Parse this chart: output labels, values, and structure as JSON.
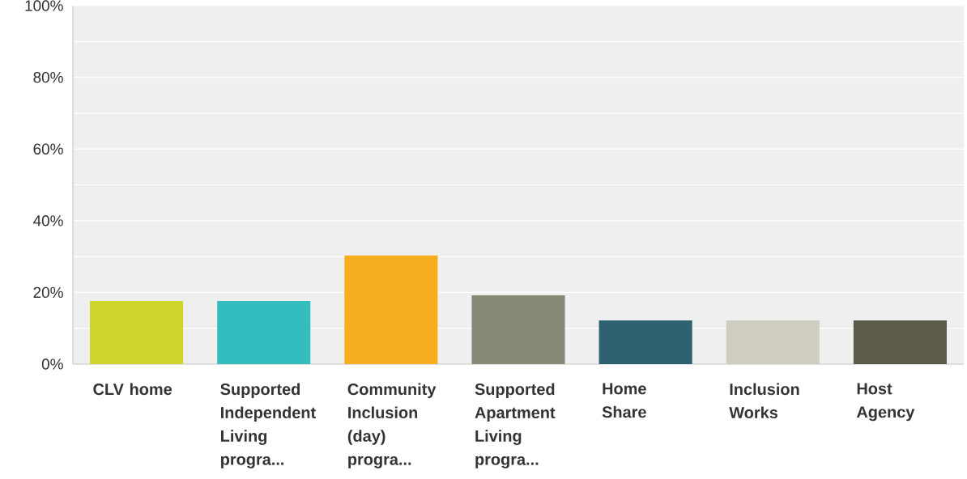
{
  "chart_data": {
    "type": "bar",
    "categories": [
      "CLV home",
      "Supported Independent Living progra...",
      "Community Inclusion (day) progra...",
      "Supported Apartment Living progra...",
      "Home Share",
      "Inclusion Works",
      "Host Agency"
    ],
    "values": [
      17.6,
      17.6,
      30.3,
      19.2,
      12.2,
      12.2,
      12.2
    ],
    "colors": [
      "#cfd52a",
      "#33bdbf",
      "#f6ae1f",
      "#888a78",
      "#2e6270",
      "#cfcdbf",
      "#5c5a4b"
    ],
    "ylim": [
      0,
      100
    ],
    "yticks": [
      {
        "value": 0,
        "label": "0%"
      },
      {
        "value": 10,
        "label": null
      },
      {
        "value": 20,
        "label": "20%"
      },
      {
        "value": 30,
        "label": null
      },
      {
        "value": 40,
        "label": "40%"
      },
      {
        "value": 50,
        "label": null
      },
      {
        "value": 60,
        "label": "60%"
      },
      {
        "value": 70,
        "label": null
      },
      {
        "value": 80,
        "label": "80%"
      },
      {
        "value": 90,
        "label": null
      },
      {
        "value": 100,
        "label": "100%"
      }
    ],
    "grid": "y"
  }
}
